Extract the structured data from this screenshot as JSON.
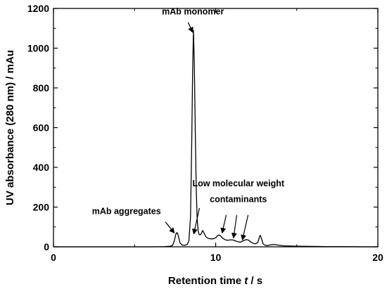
{
  "chart_data": {
    "type": "line",
    "title": "",
    "xlabel_main": "Retention time ",
    "xlabel_var": "t",
    "xlabel_unit": " / s",
    "ylabel": "UV absorbance (280 nm) / mAu",
    "xlim": [
      0,
      20
    ],
    "ylim": [
      0,
      1200
    ],
    "x_ticks": [
      0,
      10,
      20
    ],
    "y_ticks": [
      0,
      200,
      400,
      600,
      800,
      1000,
      1200
    ],
    "grid": false,
    "series": [
      {
        "color": "#000000",
        "points": [
          [
            0,
            0
          ],
          [
            2,
            0
          ],
          [
            4,
            0
          ],
          [
            6,
            0
          ],
          [
            6.8,
            1
          ],
          [
            7.2,
            3
          ],
          [
            7.35,
            8
          ],
          [
            7.45,
            30
          ],
          [
            7.55,
            65
          ],
          [
            7.62,
            72
          ],
          [
            7.7,
            55
          ],
          [
            7.8,
            20
          ],
          [
            7.95,
            8
          ],
          [
            8.1,
            8
          ],
          [
            8.25,
            12
          ],
          [
            8.35,
            30
          ],
          [
            8.45,
            150
          ],
          [
            8.52,
            500
          ],
          [
            8.58,
            880
          ],
          [
            8.63,
            1090
          ],
          [
            8.68,
            940
          ],
          [
            8.74,
            600
          ],
          [
            8.8,
            300
          ],
          [
            8.86,
            140
          ],
          [
            8.92,
            80
          ],
          [
            8.98,
            62
          ],
          [
            9.05,
            60
          ],
          [
            9.12,
            68
          ],
          [
            9.2,
            82
          ],
          [
            9.28,
            70
          ],
          [
            9.4,
            50
          ],
          [
            9.55,
            42
          ],
          [
            9.7,
            40
          ],
          [
            9.85,
            40
          ],
          [
            10,
            45
          ],
          [
            10.1,
            55
          ],
          [
            10.2,
            60
          ],
          [
            10.3,
            55
          ],
          [
            10.45,
            42
          ],
          [
            10.6,
            35
          ],
          [
            10.75,
            33
          ],
          [
            10.9,
            35
          ],
          [
            11.05,
            35
          ],
          [
            11.2,
            30
          ],
          [
            11.4,
            25
          ],
          [
            11.55,
            24
          ],
          [
            11.7,
            30
          ],
          [
            11.85,
            36
          ],
          [
            12,
            35
          ],
          [
            12.15,
            25
          ],
          [
            12.3,
            18
          ],
          [
            12.45,
            15
          ],
          [
            12.6,
            22
          ],
          [
            12.68,
            45
          ],
          [
            12.75,
            58
          ],
          [
            12.83,
            40
          ],
          [
            12.92,
            15
          ],
          [
            13.05,
            8
          ],
          [
            13.2,
            6
          ],
          [
            13.4,
            10
          ],
          [
            13.6,
            12
          ],
          [
            13.9,
            8
          ],
          [
            14.2,
            5
          ],
          [
            15,
            3
          ],
          [
            16,
            2
          ],
          [
            17,
            1
          ],
          [
            18,
            1
          ],
          [
            19,
            0
          ],
          [
            20,
            0
          ]
        ]
      }
    ],
    "annotations": [
      {
        "text": "mAb monomer",
        "x": 8.6,
        "y": 1170,
        "arrow_from": [
          8.3,
          1130
        ],
        "arrow_to": [
          8.58,
          1080
        ]
      },
      {
        "text": "Low molecular weight",
        "x": 11.4,
        "y": 305,
        "arrow_from": null,
        "arrow_to": null
      },
      {
        "text": "contaminants",
        "x": 11.4,
        "y": 225,
        "arrow_from": null,
        "arrow_to": null
      },
      {
        "text": "mAb aggregates",
        "x": 4.5,
        "y": 165,
        "arrow_from": [
          6.9,
          125
        ],
        "arrow_to": [
          7.45,
          70
        ]
      }
    ],
    "arrows": [
      {
        "from": [
          9.0,
          195
        ],
        "to": [
          8.65,
          65
        ]
      },
      {
        "from": [
          10.65,
          160
        ],
        "to": [
          10.4,
          70
        ]
      },
      {
        "from": [
          11.3,
          160
        ],
        "to": [
          11.1,
          45
        ]
      },
      {
        "from": [
          12.0,
          160
        ],
        "to": [
          11.65,
          35
        ]
      }
    ]
  }
}
